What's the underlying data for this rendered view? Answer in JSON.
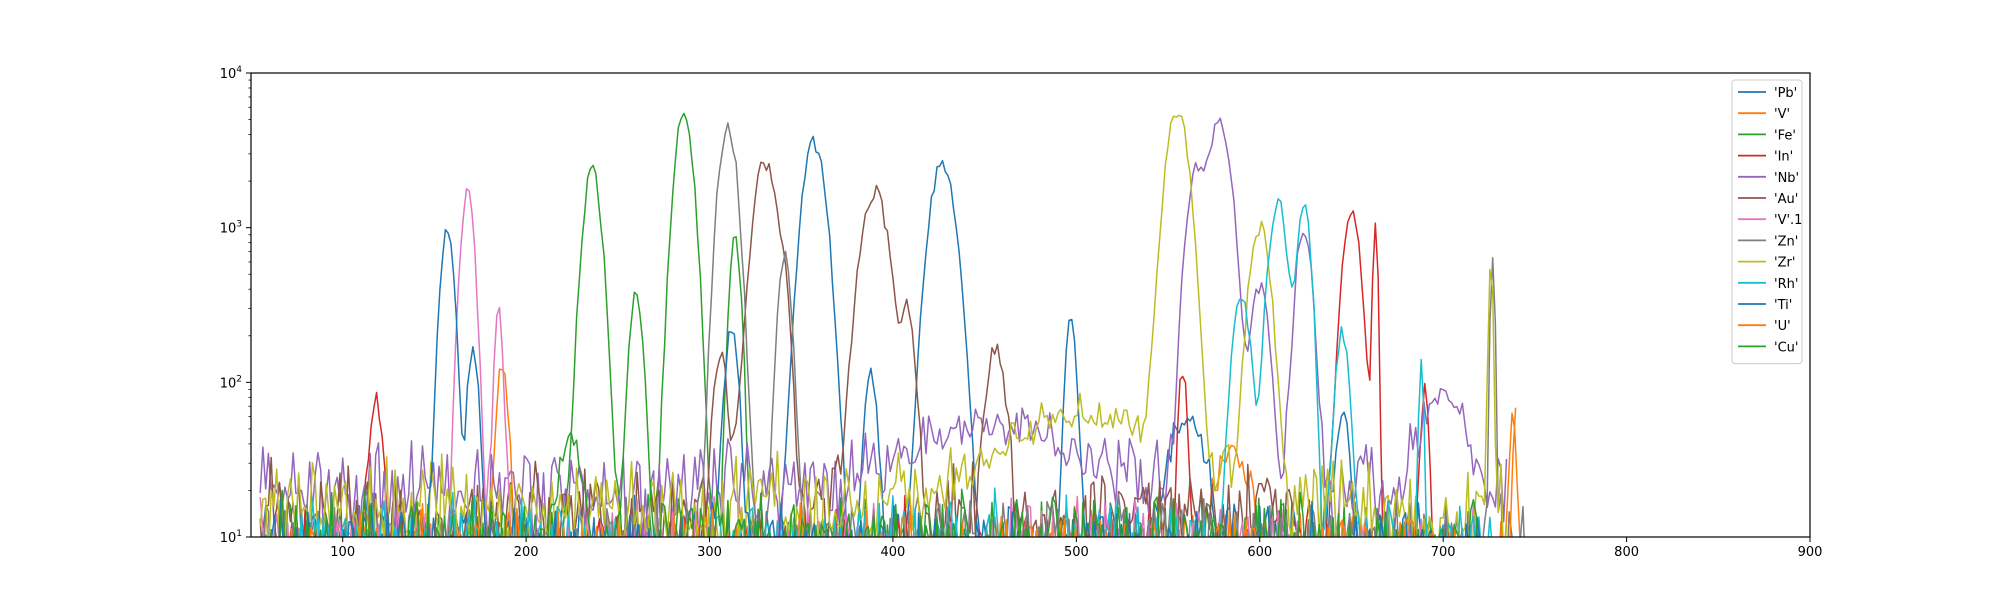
{
  "chart_data": {
    "type": "line",
    "title": "",
    "xlabel": "",
    "ylabel": "",
    "xlim": [
      50,
      900
    ],
    "ylim": [
      10,
      10000
    ],
    "yscale": "log",
    "grid": false,
    "legend_position": "top-right",
    "xticks": [
      "100",
      "200",
      "300",
      "400",
      "500",
      "600",
      "700",
      "800",
      "900"
    ],
    "yticks": [
      {
        "value": 10,
        "base": "10",
        "exp": "1"
      },
      {
        "value": 100,
        "base": "10",
        "exp": "2"
      },
      {
        "value": 1000,
        "base": "10",
        "exp": "3"
      },
      {
        "value": 10000,
        "base": "10",
        "exp": "4"
      }
    ],
    "series": [
      {
        "name": "'Pb'",
        "color": "#1f77b4",
        "noise": 12,
        "range": [
          55,
          700
        ],
        "peaks": [
          [
            357,
            3500,
            5
          ],
          [
            427,
            2650,
            5.5
          ],
          [
            497,
            245,
            2.5
          ],
          [
            388,
            100,
            3
          ],
          [
            560,
            50,
            8
          ],
          [
            645,
            55,
            3
          ]
        ]
      },
      {
        "name": "'V'",
        "color": "#ff7f0e",
        "noise": 10,
        "range": [
          55,
          745
        ],
        "peaks": [
          [
            187,
            125,
            2.5
          ],
          [
            738,
            55,
            1.5
          ],
          [
            585,
            30,
            8
          ]
        ]
      },
      {
        "name": "'Fe'",
        "color": "#2ca02c",
        "noise": 12,
        "range": [
          55,
          705
        ],
        "peaks": [
          [
            236,
            2300,
            4
          ],
          [
            286,
            5600,
            4
          ],
          [
            314,
            850,
            2.5
          ]
        ]
      },
      {
        "name": "'In'",
        "color": "#d62728",
        "noise": 11,
        "range": [
          60,
          705
        ],
        "peaks": [
          [
            118,
            70,
            3
          ],
          [
            650,
            1200,
            4
          ],
          [
            663,
            950,
            1.2
          ],
          [
            558,
            110,
            2
          ],
          [
            690,
            100,
            1.5
          ]
        ]
      },
      {
        "name": "'Nb'",
        "color": "#9467bd",
        "noise": 30,
        "range": [
          55,
          735
        ],
        "peaks": [
          [
            565,
            2300,
            4
          ],
          [
            578,
            4900,
            5
          ],
          [
            600,
            400,
            4
          ],
          [
            624,
            950,
            3.5
          ],
          [
            455,
            30,
            40
          ],
          [
            700,
            60,
            10
          ]
        ]
      },
      {
        "name": "'Au'",
        "color": "#8c564b",
        "noise": 20,
        "range": [
          55,
          620
        ],
        "peaks": [
          [
            330,
            2600,
            5
          ],
          [
            390,
            1700,
            6
          ],
          [
            408,
            300,
            3
          ],
          [
            456,
            160,
            4
          ],
          [
            306,
            150,
            3
          ],
          [
            340,
            420,
            3
          ]
        ]
      },
      {
        "name": "'V'.1",
        "color": "#e377c2",
        "noise": 12,
        "range": [
          55,
          720
        ],
        "peaks": [
          [
            168,
            1700,
            3
          ],
          [
            185,
            270,
            2
          ]
        ]
      },
      {
        "name": "'Zn'",
        "color": "#7f7f7f",
        "noise": 13,
        "range": [
          55,
          745
        ],
        "peaks": [
          [
            310,
            4600,
            4
          ],
          [
            341,
            620,
            3
          ],
          [
            727,
            650,
            1
          ]
        ]
      },
      {
        "name": "'Zr'",
        "color": "#bcbd22",
        "noise": 22,
        "range": [
          55,
          735
        ],
        "peaks": [
          [
            555,
            5400,
            5
          ],
          [
            600,
            1000,
            4.5
          ],
          [
            726,
            640,
            1
          ],
          [
            505,
            45,
            40
          ]
        ]
      },
      {
        "name": "'Rh'",
        "color": "#17becf",
        "noise": 12,
        "range": [
          55,
          730
        ],
        "peaks": [
          [
            610,
            1450,
            4
          ],
          [
            624,
            1500,
            3
          ],
          [
            590,
            330,
            4
          ],
          [
            645,
            210,
            3
          ],
          [
            688,
            120,
            1.2
          ]
        ]
      },
      {
        "name": "'Ti'",
        "color": "#1f77b4",
        "noise": 11,
        "range": [
          60,
          720
        ],
        "peaks": [
          [
            157,
            920,
            3
          ],
          [
            171,
            160,
            2.5
          ],
          [
            312,
            210,
            3
          ]
        ]
      },
      {
        "name": "'U'",
        "color": "#ff7f0e",
        "noise": 10,
        "range": [
          60,
          740
        ],
        "peaks": [
          [
            740,
            55,
            1.5
          ]
        ]
      },
      {
        "name": "'Cu'",
        "color": "#2ca02c",
        "noise": 13,
        "range": [
          55,
          720
        ],
        "peaks": [
          [
            260,
            360,
            3
          ],
          [
            224,
            35,
            5
          ]
        ]
      }
    ]
  }
}
